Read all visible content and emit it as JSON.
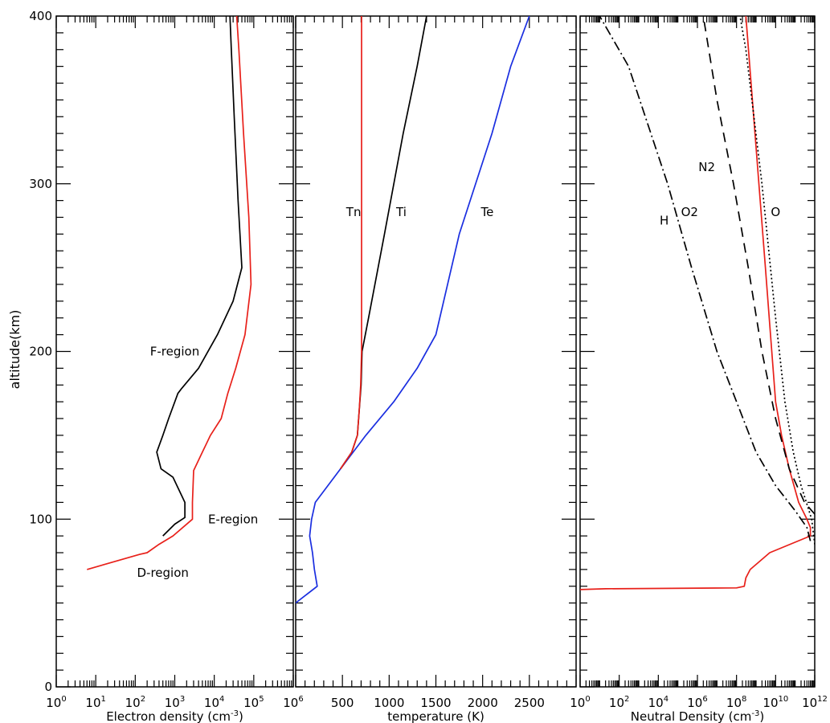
{
  "figure": {
    "ylabel": "altitude(km)",
    "yticks": [
      0,
      100,
      200,
      300,
      400
    ]
  },
  "colors": {
    "axis": "#000000",
    "red": "#e8201a",
    "blue": "#1a2ee0",
    "black": "#000000"
  },
  "chart_data": [
    {
      "type": "line",
      "xscale": "log",
      "xlim": [
        1,
        1000000
      ],
      "ylim": [
        0,
        400
      ],
      "xlabel": "Electron density (cm⁻³)",
      "xlabel_parts": {
        "base": "Electron density (cm",
        "sup": "-3",
        "tail": ")"
      },
      "xticks": [
        {
          "base": "10",
          "exp": "0"
        },
        {
          "base": "10",
          "exp": "1"
        },
        {
          "base": "10",
          "exp": "2"
        },
        {
          "base": "10",
          "exp": "3"
        },
        {
          "base": "10",
          "exp": "4"
        },
        {
          "base": "10",
          "exp": "5"
        },
        {
          "base": "10",
          "exp": "6"
        }
      ],
      "series": [
        {
          "color": "red",
          "dash": "",
          "points": [
            [
              6,
              70
            ],
            [
              130,
              79
            ],
            [
              200,
              80
            ],
            [
              400,
              85
            ],
            [
              900,
              90
            ],
            [
              2800,
              100
            ],
            [
              2800,
              110
            ],
            [
              3000,
              129
            ],
            [
              5000,
              140
            ],
            [
              8000,
              150
            ],
            [
              15000,
              160
            ],
            [
              22000,
              175
            ],
            [
              35000,
              190
            ],
            [
              60000,
              210
            ],
            [
              85000,
              240
            ],
            [
              75000,
              280
            ],
            [
              55000,
              330
            ],
            [
              42000,
              380
            ],
            [
              37000,
              400
            ]
          ]
        },
        {
          "color": "black",
          "dash": "",
          "points": [
            [
              500,
              90
            ],
            [
              1000,
              97
            ],
            [
              1800,
              101
            ],
            [
              1800,
              110
            ],
            [
              900,
              125
            ],
            [
              450,
              130
            ],
            [
              350,
              140
            ],
            [
              500,
              150
            ],
            [
              700,
              160
            ],
            [
              1200,
              175
            ],
            [
              1500,
              178
            ],
            [
              4000,
              190
            ],
            [
              12000,
              210
            ],
            [
              30000,
              230
            ],
            [
              50000,
              250
            ],
            [
              40000,
              290
            ],
            [
              32000,
              340
            ],
            [
              27000,
              380
            ],
            [
              25000,
              400
            ]
          ]
        }
      ],
      "annotations": [
        {
          "text": "F-region",
          "x": 1000,
          "y": 200
        },
        {
          "text": "E-region",
          "x": 30000,
          "y": 100
        },
        {
          "text": "D-region",
          "x": 500,
          "y": 68
        }
      ]
    },
    {
      "type": "line",
      "xscale": "linear",
      "xlim": [
        0,
        3000
      ],
      "ylim": [
        0,
        400
      ],
      "xlabel": "temperature (K)",
      "xticks": [
        {
          "value": 500,
          "label": "500"
        },
        {
          "value": 1000,
          "label": "1000"
        },
        {
          "value": 1500,
          "label": "1500"
        },
        {
          "value": 2000,
          "label": "2000"
        },
        {
          "value": 2500,
          "label": "2500"
        }
      ],
      "series": [
        {
          "color": "blue",
          "dash": "",
          "points": [
            [
              0,
              50
            ],
            [
              230,
              60
            ],
            [
              200,
              70
            ],
            [
              180,
              80
            ],
            [
              150,
              90
            ],
            [
              170,
              100
            ],
            [
              210,
              110
            ],
            [
              480,
              130
            ],
            [
              750,
              150
            ],
            [
              1050,
              170
            ],
            [
              1300,
              190
            ],
            [
              1500,
              210
            ],
            [
              1750,
              270
            ],
            [
              2100,
              330
            ],
            [
              2300,
              370
            ],
            [
              2500,
              400
            ]
          ]
        },
        {
          "color": "black",
          "dash": "",
          "points": [
            [
              480,
              130
            ],
            [
              600,
              140
            ],
            [
              660,
              150
            ],
            [
              680,
              165
            ],
            [
              700,
              180
            ],
            [
              710,
              200
            ],
            [
              780,
              220
            ],
            [
              950,
              270
            ],
            [
              1150,
              330
            ],
            [
              1300,
              370
            ],
            [
              1400,
              400
            ]
          ]
        },
        {
          "color": "red",
          "dash": "",
          "points": [
            [
              480,
              130
            ],
            [
              600,
              140
            ],
            [
              660,
              150
            ],
            [
              680,
              165
            ],
            [
              695,
              180
            ],
            [
              705,
              200
            ],
            [
              705,
              300
            ],
            [
              705,
              400
            ]
          ]
        }
      ],
      "annotations": [
        {
          "text": "Tn",
          "x": 620,
          "y": 283
        },
        {
          "text": "Ti",
          "x": 1130,
          "y": 283
        },
        {
          "text": "Te",
          "x": 2050,
          "y": 283
        }
      ]
    },
    {
      "type": "line",
      "xscale": "log",
      "xlim": [
        1,
        1000000000000
      ],
      "ylim": [
        0,
        400
      ],
      "xlabel": "Neutral Density (cm⁻³)",
      "xlabel_parts": {
        "base": "Neutral Density (cm",
        "sup": "-3",
        "tail": ")"
      },
      "xticks": [
        {
          "base": "10",
          "exp": "0"
        },
        {
          "base": "10",
          "exp": "2"
        },
        {
          "base": "10",
          "exp": "4"
        },
        {
          "base": "10",
          "exp": "6"
        },
        {
          "base": "10",
          "exp": "8"
        },
        {
          "base": "10",
          "exp": "10"
        },
        {
          "base": "10",
          "exp": "12"
        }
      ],
      "series": [
        {
          "color": "red",
          "dash": "",
          "points": [
            [
              1,
              58
            ],
            [
              20,
              58.5
            ],
            [
              100000000,
              59
            ],
            [
              250000000,
              60
            ],
            [
              300000000,
              65
            ],
            [
              500000000,
              70
            ],
            [
              5000000000,
              80
            ],
            [
              600000000000,
              90
            ],
            [
              600000000000,
              95
            ],
            [
              400000000000,
              100
            ],
            [
              150000000000,
              110
            ],
            [
              50000000000,
              130
            ],
            [
              20000000000,
              150
            ],
            [
              10000000000,
              170
            ],
            [
              3000000000,
              250
            ],
            [
              300000000,
              400
            ]
          ]
        },
        {
          "color": "black",
          "dash": "2,3",
          "points": [
            [
              1000000000000,
              85
            ],
            [
              700000000000,
              100
            ],
            [
              200000000000,
              120
            ],
            [
              80000000000,
              140
            ],
            [
              30000000000,
              170
            ],
            [
              10000000000,
              220
            ],
            [
              2000000000,
              300
            ],
            [
              300000000,
              380
            ],
            [
              150000000,
              400
            ]
          ]
        },
        {
          "color": "black",
          "dash": "12,8",
          "points": [
            [
              1000000000000,
              103
            ],
            [
              300000000000,
              110
            ],
            [
              50000000000,
              130
            ],
            [
              10000000000,
              160
            ],
            [
              2000000000,
              200
            ],
            [
              400000000,
              250
            ],
            [
              70000000,
              300
            ],
            [
              10000000,
              350
            ],
            [
              2000000,
              400
            ]
          ]
        },
        {
          "color": "black",
          "dash": "12,4,2,4",
          "points": [
            [
              600000000000,
              87
            ],
            [
              400000000000,
              95
            ],
            [
              100000000000,
              105
            ],
            [
              10000000000,
              120
            ],
            [
              1000000000,
              140
            ],
            [
              100000000,
              170
            ],
            [
              10000000,
              200
            ],
            [
              500000,
              250
            ],
            [
              30000,
              300
            ],
            [
              300,
              370
            ],
            [
              10,
              400
            ]
          ]
        }
      ],
      "annotations": [
        {
          "text": "N2",
          "x": 3000000,
          "y": 310
        },
        {
          "text": "O2",
          "x": 400000,
          "y": 283
        },
        {
          "text": "O",
          "x": 10000000000,
          "y": 283
        },
        {
          "text": "H",
          "x": 20000,
          "y": 278
        }
      ]
    }
  ]
}
